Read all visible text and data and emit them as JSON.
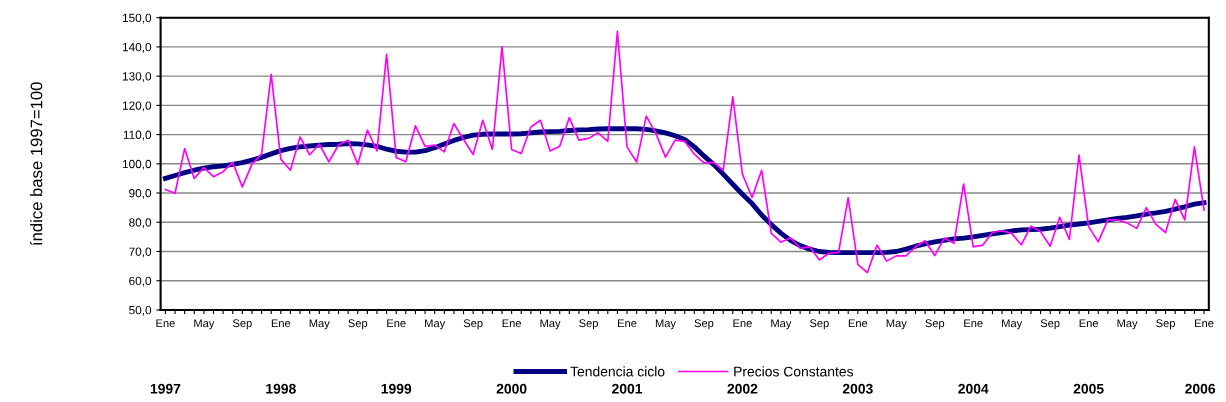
{
  "chart_data": {
    "type": "line",
    "ylabel": "índice base 1997=100",
    "categories": [
      "Ene",
      null,
      null,
      null,
      "May",
      null,
      null,
      null,
      "Sep",
      null,
      null,
      null,
      "Ene",
      null,
      null,
      null,
      "May",
      null,
      null,
      null,
      "Sep",
      null,
      null,
      null,
      "Ene",
      null,
      null,
      null,
      "May",
      null,
      null,
      null,
      "Sep",
      null,
      null,
      null,
      "Ene",
      null,
      null,
      null,
      "May",
      null,
      null,
      null,
      "Sep",
      null,
      null,
      null,
      "Ene",
      null,
      null,
      null,
      "May",
      null,
      null,
      null,
      "Sep",
      null,
      null,
      null,
      "Ene",
      null,
      null,
      null,
      "May",
      null,
      null,
      null,
      "Sep",
      null,
      null,
      null,
      "Ene",
      null,
      null,
      null,
      "May",
      null,
      null,
      null,
      "Sep",
      null,
      null,
      null,
      "Ene",
      null,
      null,
      null,
      "May",
      null,
      null,
      null,
      "Sep",
      null,
      null,
      null,
      "Ene",
      null,
      null,
      null,
      "May",
      null,
      null,
      null,
      "Sep",
      null,
      null,
      null,
      "Ene"
    ],
    "series": [
      {
        "name": "Tendencia ciclo",
        "color": "#000080",
        "values": [
          95.0,
          96.0,
          97.0,
          97.8,
          98.5,
          99.0,
          99.3,
          99.8,
          100.4,
          101.3,
          102.2,
          103.4,
          104.5,
          105.3,
          105.8,
          106.1,
          106.4,
          106.6,
          106.7,
          106.9,
          106.8,
          106.5,
          106.0,
          105.0,
          104.3,
          104.0,
          104.0,
          104.5,
          105.5,
          106.8,
          108.0,
          109.0,
          109.8,
          110.1,
          110.2,
          110.2,
          110.2,
          110.3,
          110.6,
          110.9,
          111.0,
          111.1,
          111.4,
          111.6,
          111.7,
          111.9,
          112.0,
          112.0,
          112.0,
          112.0,
          111.8,
          111.3,
          110.6,
          109.6,
          108.3,
          105.8,
          102.7,
          99.8,
          96.5,
          93.0,
          89.6,
          86.4,
          82.5,
          79.2,
          76.3,
          73.8,
          72.0,
          70.8,
          70.0,
          69.7,
          69.6,
          69.6,
          69.6,
          69.6,
          69.6,
          69.7,
          70.0,
          70.8,
          71.8,
          72.6,
          73.3,
          73.8,
          74.3,
          74.6,
          75.0,
          75.5,
          76.0,
          76.5,
          77.0,
          77.4,
          77.5,
          77.6,
          78.0,
          78.5,
          79.0,
          79.4,
          79.8,
          80.3,
          80.8,
          81.3,
          81.7,
          82.2,
          82.8,
          83.2,
          83.7,
          84.5,
          85.3,
          86.2,
          86.7
        ]
      },
      {
        "name": "Precios Constantes",
        "color": "#ff00ff",
        "values": [
          91.2,
          89.9,
          105.2,
          95.0,
          98.7,
          95.6,
          97.3,
          100.5,
          92.1,
          99.9,
          103.3,
          130.6,
          101.6,
          97.8,
          109.2,
          103.1,
          106.7,
          100.7,
          106.4,
          108.1,
          99.8,
          111.5,
          104.4,
          137.5,
          102.2,
          100.7,
          113.0,
          106.0,
          106.4,
          104.1,
          113.8,
          108.3,
          103.2,
          114.9,
          104.9,
          140.0,
          104.9,
          103.5,
          112.6,
          114.9,
          104.4,
          106.0,
          115.8,
          108.1,
          108.7,
          110.6,
          107.7,
          145.3,
          105.8,
          100.6,
          116.3,
          110.4,
          102.3,
          108.1,
          107.7,
          103.3,
          100.3,
          100.5,
          97.8,
          122.9,
          96.5,
          88.5,
          97.8,
          76.2,
          73.2,
          74.7,
          71.1,
          71.6,
          67.1,
          69.4,
          69.7,
          88.4,
          65.6,
          62.8,
          72.2,
          66.7,
          68.5,
          68.5,
          71.6,
          73.7,
          68.6,
          74.6,
          72.8,
          93.1,
          71.6,
          72.2,
          76.5,
          77.1,
          76.2,
          72.3,
          78.7,
          76.8,
          71.8,
          81.7,
          74.1,
          103.0,
          78.5,
          73.3,
          80.8,
          80.8,
          79.8,
          77.9,
          85.0,
          79.3,
          76.5,
          87.8,
          80.8,
          105.8,
          84.2
        ]
      }
    ],
    "ylim": [
      50,
      150
    ],
    "yticks": [
      {
        "value": 50,
        "label": "50,0"
      },
      {
        "value": 60,
        "label": "60,0"
      },
      {
        "value": 70,
        "label": "70,0"
      },
      {
        "value": 80,
        "label": "80,0"
      },
      {
        "value": 90,
        "label": "90,0"
      },
      {
        "value": 100,
        "label": "100,0"
      },
      {
        "value": 110,
        "label": "110,0"
      },
      {
        "value": 120,
        "label": "120,0"
      },
      {
        "value": 130,
        "label": "130,0"
      },
      {
        "value": 140,
        "label": "140,0"
      },
      {
        "value": 150,
        "label": "150,0"
      }
    ],
    "grid": "y",
    "legend": "bottom",
    "marker": "none",
    "line_style": "solid",
    "annotations": [
      "1997",
      "1998",
      "1999",
      "2000",
      "2001",
      "2002",
      "2003",
      "2004",
      "2005",
      "2006"
    ]
  }
}
